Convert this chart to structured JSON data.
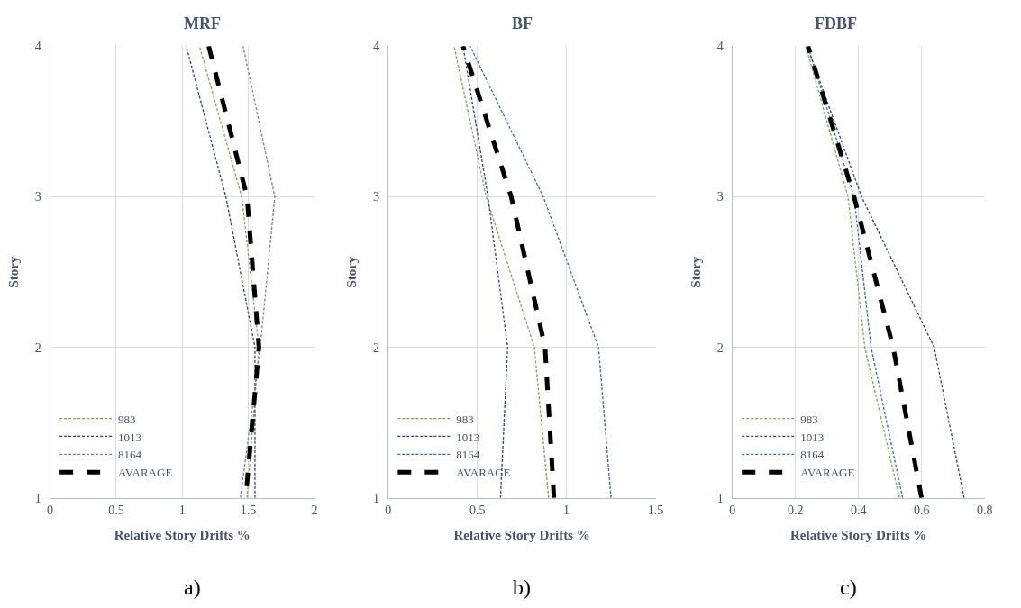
{
  "chart_data": [
    {
      "type": "line",
      "title": "MRF",
      "xlabel": "Relative Story Drifts %",
      "ylabel": "Story",
      "annotations": [
        "a)"
      ],
      "xlim": [
        0,
        2
      ],
      "xticks": [
        0,
        0.5,
        1,
        1.5,
        2
      ],
      "ylim": [
        1,
        4
      ],
      "yticks": [
        1,
        2,
        3,
        4
      ],
      "grid": true,
      "legend": "bottom left",
      "line_style": "dashed",
      "marker": "none",
      "series": [
        {
          "name": "983",
          "color": "#70ad47",
          "x": [
            1.49,
            1.58,
            1.45,
            1.13
          ],
          "values": [
            1,
            2,
            3,
            4
          ]
        },
        {
          "name": "1013",
          "color": "#264478",
          "x": [
            1.55,
            1.55,
            1.33,
            1.03
          ],
          "values": [
            1,
            2,
            3,
            4
          ]
        },
        {
          "name": "8164",
          "color": "#7f7f7f",
          "x": [
            1.44,
            1.59,
            1.7,
            1.46
          ],
          "values": [
            1,
            2,
            3,
            4
          ]
        },
        {
          "name": "AVARAGE",
          "color": "#000000",
          "x": [
            1.2,
            1.49,
            1.58,
            1.48
          ],
          "values": [
            4,
            3,
            2,
            1
          ]
        }
      ]
    },
    {
      "type": "line",
      "title": "BF",
      "xlabel": "Relative Story Drifts %",
      "ylabel": "Story",
      "annotations": [
        "b)"
      ],
      "xlim": [
        0,
        1.5
      ],
      "xticks": [
        0,
        0.5,
        1,
        1.5
      ],
      "ylim": [
        1,
        4
      ],
      "yticks": [
        1,
        2,
        3,
        4
      ],
      "grid": true,
      "legend": "bottom left",
      "line_style": "dashed",
      "marker": "none",
      "series": [
        {
          "name": "983",
          "color": "#70ad47",
          "x": [
            0.9,
            0.82,
            0.55,
            0.37
          ],
          "values": [
            1,
            2,
            3,
            4
          ]
        },
        {
          "name": "1013",
          "color": "#264478",
          "x": [
            0.63,
            0.67,
            0.56,
            0.42
          ],
          "values": [
            1,
            2,
            3,
            4
          ]
        },
        {
          "name": "8164",
          "color": "#2e6ca4",
          "x": [
            1.25,
            1.18,
            0.87,
            0.46
          ],
          "values": [
            1,
            2,
            3,
            4
          ]
        },
        {
          "name": "AVARAGE",
          "color": "#000000",
          "x": [
            0.93,
            0.88,
            0.69,
            0.42
          ],
          "values": [
            1,
            2,
            3,
            4
          ]
        }
      ]
    },
    {
      "type": "line",
      "title": "FDBF",
      "xlabel": "Relative Story Drifts %",
      "ylabel": "Story",
      "annotations": [
        "c)"
      ],
      "xlim": [
        0,
        0.8
      ],
      "xticks": [
        0,
        0.2,
        0.4,
        0.6,
        0.8
      ],
      "ylim": [
        1,
        4
      ],
      "yticks": [
        1,
        2,
        3,
        4
      ],
      "grid": true,
      "legend": "bottom left",
      "line_style": "dashed",
      "marker": "none",
      "series": [
        {
          "name": "983",
          "color": "#70ad47",
          "x": [
            0.53,
            0.42,
            0.367,
            0.233
          ],
          "values": [
            1,
            2,
            3,
            4
          ]
        },
        {
          "name": "1013",
          "color": "#264478",
          "x": [
            0.735,
            0.64,
            0.41,
            0.237
          ],
          "values": [
            1,
            2,
            3,
            4
          ]
        },
        {
          "name": "8164",
          "color": "#2e6ca4",
          "x": [
            0.54,
            0.44,
            0.386,
            0.24
          ],
          "values": [
            1,
            2,
            3,
            4
          ]
        },
        {
          "name": "AVARAGE",
          "color": "#000000",
          "x": [
            0.6,
            0.51,
            0.386,
            0.24
          ],
          "values": [
            1,
            2,
            3,
            4
          ]
        }
      ]
    }
  ]
}
